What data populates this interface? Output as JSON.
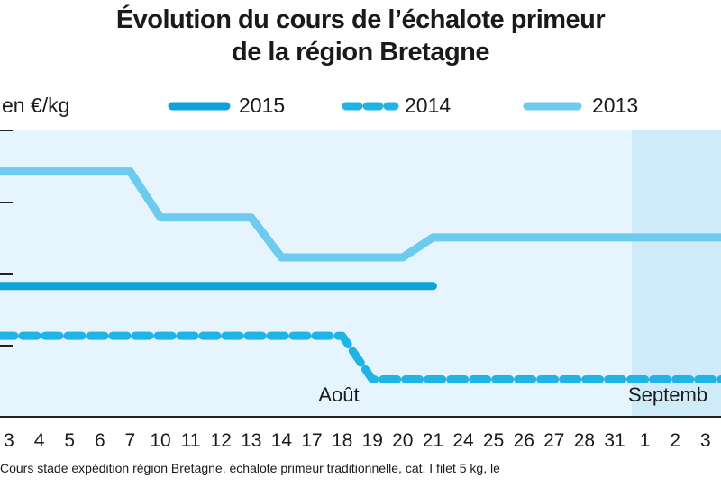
{
  "chart_data": {
    "type": "line",
    "title_line1": "Évolution du cours de l’échalote primeur",
    "title_line2": "de la région Bretagne",
    "ylabel": "en €/kg",
    "xlabel": "",
    "month_labels": [
      "Août",
      "Septemb"
    ],
    "categories": [
      "3",
      "4",
      "5",
      "6",
      "7",
      "10",
      "11",
      "12",
      "13",
      "14",
      "17",
      "18",
      "19",
      "20",
      "21",
      "24",
      "25",
      "26",
      "27",
      "28",
      "31",
      "1",
      "2",
      "3"
    ],
    "legend": [
      {
        "name": "2015",
        "style": "solid",
        "color": "#0aa3dc"
      },
      {
        "name": "2014",
        "style": "dashed",
        "color": "#1fb3e6"
      },
      {
        "name": "2013",
        "style": "solid",
        "color": "#6ccbef"
      }
    ],
    "series": [
      {
        "name": "2015",
        "values": [
          1.05,
          1.05,
          1.05,
          1.05,
          1.05,
          1.05,
          1.05,
          1.05,
          1.05,
          1.05,
          1.05,
          1.05,
          1.05,
          1.05,
          1.05,
          null,
          null,
          null,
          null,
          null,
          null,
          null,
          null,
          null
        ]
      },
      {
        "name": "2014",
        "values": [
          0.65,
          0.65,
          0.65,
          0.65,
          0.65,
          0.65,
          0.65,
          0.65,
          0.65,
          0.65,
          0.65,
          0.65,
          0.3,
          0.3,
          0.3,
          0.3,
          0.3,
          0.3,
          0.3,
          0.3,
          0.3,
          0.3,
          0.3,
          0.3
        ]
      },
      {
        "name": "2013",
        "values": [
          1.97,
          1.97,
          1.97,
          1.97,
          1.97,
          1.6,
          1.6,
          1.6,
          1.6,
          1.28,
          1.28,
          1.28,
          1.28,
          1.28,
          1.44,
          1.44,
          1.44,
          1.44,
          1.44,
          1.44,
          1.44,
          1.44,
          1.44,
          1.44
        ]
      }
    ],
    "ylim": [
      0.0,
      2.3
    ],
    "grid": false,
    "legend_position": "top",
    "footnote": "Cours stade expédition région Bretagne, échalote primeur traditionnelle, cat. I filet 5 kg, le"
  }
}
